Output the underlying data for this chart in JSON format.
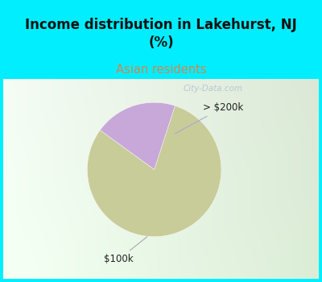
{
  "title": "Income distribution in Lakehurst, NJ\n(%)",
  "subtitle": "Asian residents",
  "title_color": "#111111",
  "subtitle_color": "#cc8855",
  "title_bg_color": "#00eeff",
  "slices": [
    80.0,
    20.0
  ],
  "slice_colors": [
    "#c8cc99",
    "#c8a8d8"
  ],
  "slice_labels": [
    "$100k",
    "> $200k"
  ],
  "start_angle": 72,
  "watermark": "City-Data.com",
  "watermark_color": "#aabbcc"
}
